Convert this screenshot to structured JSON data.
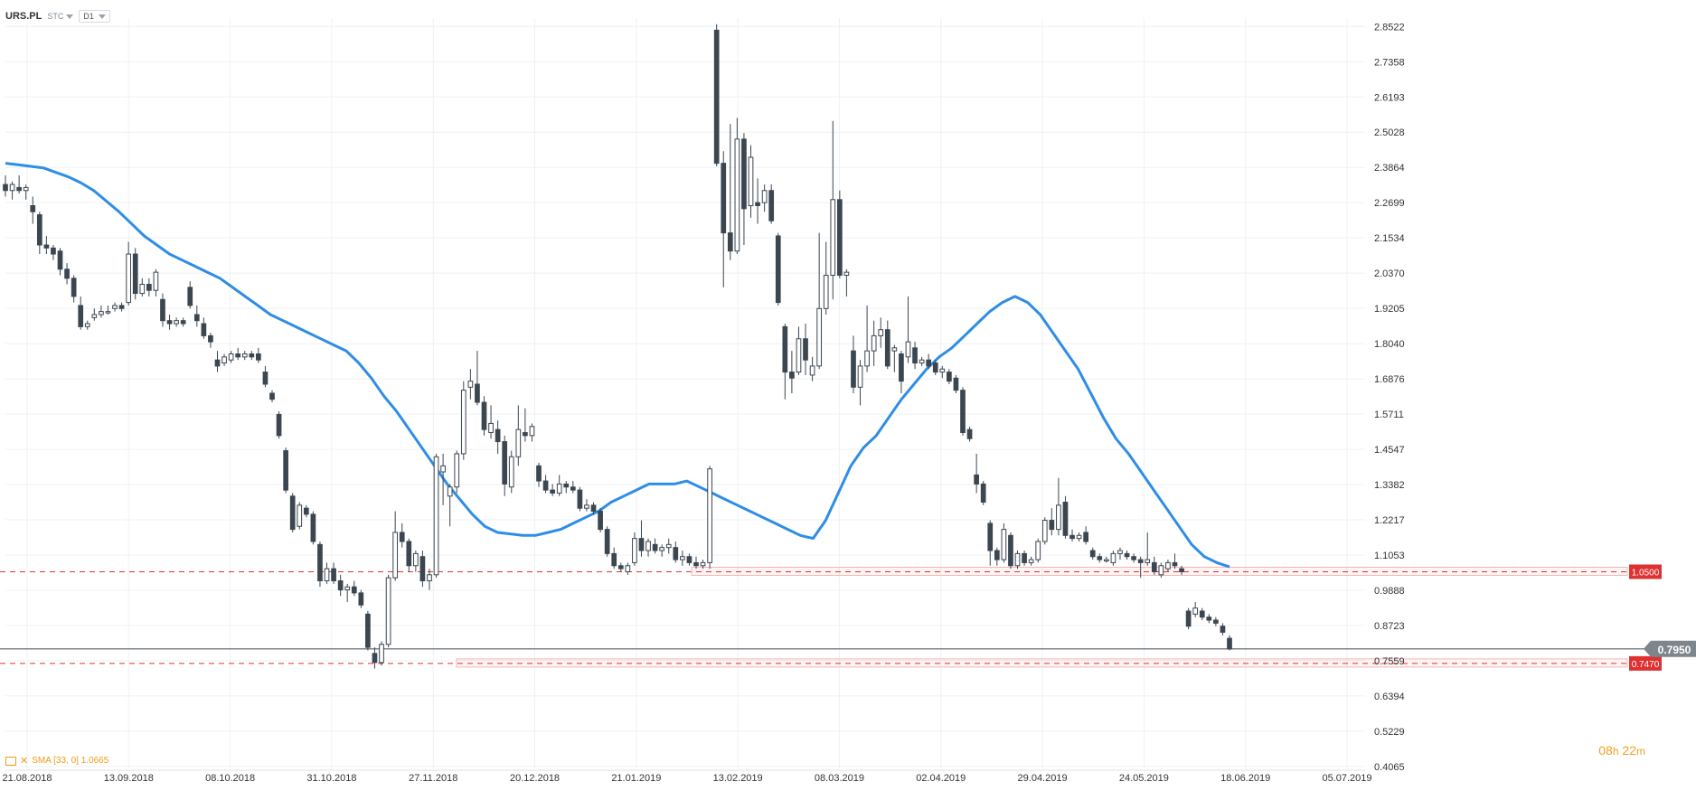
{
  "header": {
    "symbol": "URS.PL",
    "category": "STC",
    "timeframe": "D1"
  },
  "indicator": {
    "label": "SMA [33, 0] 1.0665"
  },
  "countdown": {
    "hours": "08",
    "h": "h",
    "minutes": "22",
    "m": "m"
  },
  "colors": {
    "bull_body": "#ffffff",
    "bear_body": "#3b4650",
    "candle_outline": "#3b4650",
    "sma": "#2e8de6",
    "level_red": "#e03131",
    "price_tag": "#7d868c",
    "grid": "#eef1f4",
    "axis_text": "#333333"
  },
  "chart_data": {
    "type": "candlestick",
    "symbol": "URS.PL",
    "timeframe": "D1",
    "x_tick_labels": [
      "21.08.2018",
      "13.09.2018",
      "08.10.2018",
      "31.10.2018",
      "27.11.2018",
      "20.12.2018",
      "21.01.2019",
      "13.02.2019",
      "08.03.2019",
      "02.04.2019",
      "29.04.2019",
      "24.05.2019",
      "18.06.2019",
      "05.07.2019"
    ],
    "y_tick_labels": [
      2.8522,
      2.7358,
      2.6193,
      2.5028,
      2.3864,
      2.2699,
      2.1534,
      2.037,
      1.9205,
      1.804,
      1.6876,
      1.5711,
      1.4547,
      1.3382,
      1.2217,
      1.1053,
      0.9888,
      0.8723,
      0.7559,
      0.6394,
      0.5229,
      0.4065
    ],
    "y_range": [
      0.4,
      2.88
    ],
    "last_price": "0.7950",
    "levels": [
      {
        "value": 1.05,
        "label": "1.0500",
        "x_from_date": "01.01.2019"
      },
      {
        "value": 0.747,
        "label": "0.7470",
        "x_from_date": "13.11.2018"
      }
    ],
    "sma": {
      "name": "SMA [33, 0]",
      "period": 33,
      "last_value": 1.0665,
      "values": [
        2.4,
        2.395,
        2.39,
        2.385,
        2.37,
        2.355,
        2.335,
        2.31,
        2.275,
        2.24,
        2.2,
        2.16,
        2.13,
        2.1,
        2.08,
        2.06,
        2.04,
        2.02,
        1.99,
        1.96,
        1.93,
        1.9,
        1.88,
        1.86,
        1.84,
        1.82,
        1.8,
        1.78,
        1.74,
        1.69,
        1.63,
        1.58,
        1.52,
        1.46,
        1.4,
        1.34,
        1.29,
        1.24,
        1.2,
        1.18,
        1.175,
        1.17,
        1.17,
        1.18,
        1.19,
        1.21,
        1.23,
        1.25,
        1.28,
        1.3,
        1.32,
        1.34,
        1.34,
        1.34,
        1.35,
        1.33,
        1.31,
        1.29,
        1.27,
        1.25,
        1.23,
        1.21,
        1.19,
        1.17,
        1.16,
        1.22,
        1.31,
        1.4,
        1.46,
        1.5,
        1.56,
        1.62,
        1.67,
        1.72,
        1.76,
        1.79,
        1.83,
        1.87,
        1.91,
        1.94,
        1.96,
        1.94,
        1.9,
        1.84,
        1.78,
        1.72,
        1.64,
        1.56,
        1.49,
        1.44,
        1.38,
        1.32,
        1.26,
        1.2,
        1.14,
        1.1,
        1.08,
        1.066
      ]
    },
    "candles": [
      {
        "o": 2.33,
        "h": 2.36,
        "l": 2.29,
        "c": 2.31
      },
      {
        "o": 2.31,
        "h": 2.34,
        "l": 2.28,
        "c": 2.33
      },
      {
        "o": 2.32,
        "h": 2.36,
        "l": 2.3,
        "c": 2.31
      },
      {
        "o": 2.31,
        "h": 2.33,
        "l": 2.28,
        "c": 2.32
      },
      {
        "o": 2.26,
        "h": 2.29,
        "l": 2.2,
        "c": 2.24
      },
      {
        "o": 2.23,
        "h": 2.24,
        "l": 2.1,
        "c": 2.13
      },
      {
        "o": 2.13,
        "h": 2.16,
        "l": 2.1,
        "c": 2.12
      },
      {
        "o": 2.12,
        "h": 2.13,
        "l": 2.08,
        "c": 2.1
      },
      {
        "o": 2.11,
        "h": 2.12,
        "l": 2.03,
        "c": 2.05
      },
      {
        "o": 2.05,
        "h": 2.07,
        "l": 2.0,
        "c": 2.02
      },
      {
        "o": 2.02,
        "h": 2.03,
        "l": 1.94,
        "c": 1.96
      },
      {
        "o": 1.93,
        "h": 1.96,
        "l": 1.85,
        "c": 1.86
      },
      {
        "o": 1.86,
        "h": 1.88,
        "l": 1.85,
        "c": 1.87
      },
      {
        "o": 1.89,
        "h": 1.92,
        "l": 1.88,
        "c": 1.9
      },
      {
        "o": 1.9,
        "h": 1.93,
        "l": 1.89,
        "c": 1.91
      },
      {
        "o": 1.91,
        "h": 1.93,
        "l": 1.9,
        "c": 1.91
      },
      {
        "o": 1.92,
        "h": 1.94,
        "l": 1.91,
        "c": 1.93
      },
      {
        "o": 1.93,
        "h": 1.94,
        "l": 1.91,
        "c": 1.92
      },
      {
        "o": 1.94,
        "h": 2.14,
        "l": 1.93,
        "c": 2.1
      },
      {
        "o": 2.1,
        "h": 2.12,
        "l": 1.95,
        "c": 1.97
      },
      {
        "o": 1.97,
        "h": 2.02,
        "l": 1.96,
        "c": 2.0
      },
      {
        "o": 2.0,
        "h": 2.02,
        "l": 1.96,
        "c": 1.98
      },
      {
        "o": 1.98,
        "h": 2.05,
        "l": 1.96,
        "c": 2.04
      },
      {
        "o": 1.95,
        "h": 1.97,
        "l": 1.86,
        "c": 1.88
      },
      {
        "o": 1.88,
        "h": 1.9,
        "l": 1.85,
        "c": 1.87
      },
      {
        "o": 1.87,
        "h": 1.89,
        "l": 1.86,
        "c": 1.88
      },
      {
        "o": 1.88,
        "h": 1.89,
        "l": 1.86,
        "c": 1.87
      },
      {
        "o": 1.99,
        "h": 2.01,
        "l": 1.92,
        "c": 1.93
      },
      {
        "o": 1.9,
        "h": 1.93,
        "l": 1.86,
        "c": 1.88
      },
      {
        "o": 1.87,
        "h": 1.89,
        "l": 1.82,
        "c": 1.83
      },
      {
        "o": 1.83,
        "h": 1.84,
        "l": 1.79,
        "c": 1.81
      },
      {
        "o": 1.75,
        "h": 1.78,
        "l": 1.71,
        "c": 1.73
      },
      {
        "o": 1.74,
        "h": 1.77,
        "l": 1.73,
        "c": 1.76
      },
      {
        "o": 1.75,
        "h": 1.78,
        "l": 1.74,
        "c": 1.77
      },
      {
        "o": 1.77,
        "h": 1.79,
        "l": 1.75,
        "c": 1.76
      },
      {
        "o": 1.76,
        "h": 1.78,
        "l": 1.75,
        "c": 1.77
      },
      {
        "o": 1.77,
        "h": 1.78,
        "l": 1.75,
        "c": 1.76
      },
      {
        "o": 1.77,
        "h": 1.79,
        "l": 1.74,
        "c": 1.75
      },
      {
        "o": 1.71,
        "h": 1.73,
        "l": 1.66,
        "c": 1.67
      },
      {
        "o": 1.64,
        "h": 1.65,
        "l": 1.61,
        "c": 1.62
      },
      {
        "o": 1.57,
        "h": 1.58,
        "l": 1.49,
        "c": 1.5
      },
      {
        "o": 1.45,
        "h": 1.46,
        "l": 1.31,
        "c": 1.32
      },
      {
        "o": 1.3,
        "h": 1.31,
        "l": 1.18,
        "c": 1.19
      },
      {
        "o": 1.2,
        "h": 1.28,
        "l": 1.19,
        "c": 1.27
      },
      {
        "o": 1.26,
        "h": 1.27,
        "l": 1.23,
        "c": 1.24
      },
      {
        "o": 1.24,
        "h": 1.25,
        "l": 1.14,
        "c": 1.15
      },
      {
        "o": 1.14,
        "h": 1.15,
        "l": 1.0,
        "c": 1.02
      },
      {
        "o": 1.02,
        "h": 1.08,
        "l": 1.01,
        "c": 1.06
      },
      {
        "o": 1.06,
        "h": 1.08,
        "l": 1.01,
        "c": 1.02
      },
      {
        "o": 1.02,
        "h": 1.04,
        "l": 0.97,
        "c": 0.99
      },
      {
        "o": 0.99,
        "h": 1.01,
        "l": 0.95,
        "c": 1.0
      },
      {
        "o": 1.0,
        "h": 1.02,
        "l": 0.97,
        "c": 0.98
      },
      {
        "o": 0.98,
        "h": 0.99,
        "l": 0.93,
        "c": 0.94
      },
      {
        "o": 0.91,
        "h": 0.92,
        "l": 0.79,
        "c": 0.8
      },
      {
        "o": 0.78,
        "h": 0.8,
        "l": 0.73,
        "c": 0.75
      },
      {
        "o": 0.75,
        "h": 0.82,
        "l": 0.74,
        "c": 0.81
      },
      {
        "o": 0.81,
        "h": 1.04,
        "l": 0.8,
        "c": 1.03
      },
      {
        "o": 1.03,
        "h": 1.25,
        "l": 1.02,
        "c": 1.18
      },
      {
        "o": 1.18,
        "h": 1.21,
        "l": 1.13,
        "c": 1.15
      },
      {
        "o": 1.15,
        "h": 1.16,
        "l": 1.05,
        "c": 1.07
      },
      {
        "o": 1.07,
        "h": 1.12,
        "l": 1.05,
        "c": 1.11
      },
      {
        "o": 1.1,
        "h": 1.12,
        "l": 1.0,
        "c": 1.02
      },
      {
        "o": 1.02,
        "h": 1.06,
        "l": 0.99,
        "c": 1.04
      },
      {
        "o": 1.04,
        "h": 1.44,
        "l": 1.03,
        "c": 1.43
      },
      {
        "o": 1.38,
        "h": 1.44,
        "l": 1.27,
        "c": 1.4
      },
      {
        "o": 1.3,
        "h": 1.34,
        "l": 1.2,
        "c": 1.33
      },
      {
        "o": 1.33,
        "h": 1.45,
        "l": 1.31,
        "c": 1.44
      },
      {
        "o": 1.44,
        "h": 1.68,
        "l": 1.42,
        "c": 1.65
      },
      {
        "o": 1.66,
        "h": 1.72,
        "l": 1.62,
        "c": 1.68
      },
      {
        "o": 1.67,
        "h": 1.78,
        "l": 1.6,
        "c": 1.61
      },
      {
        "o": 1.61,
        "h": 1.63,
        "l": 1.5,
        "c": 1.52
      },
      {
        "o": 1.51,
        "h": 1.6,
        "l": 1.49,
        "c": 1.54
      },
      {
        "o": 1.52,
        "h": 1.55,
        "l": 1.44,
        "c": 1.48
      },
      {
        "o": 1.48,
        "h": 1.5,
        "l": 1.3,
        "c": 1.34
      },
      {
        "o": 1.33,
        "h": 1.45,
        "l": 1.31,
        "c": 1.43
      },
      {
        "o": 1.43,
        "h": 1.6,
        "l": 1.4,
        "c": 1.52
      },
      {
        "o": 1.51,
        "h": 1.59,
        "l": 1.48,
        "c": 1.5
      },
      {
        "o": 1.5,
        "h": 1.54,
        "l": 1.48,
        "c": 1.53
      },
      {
        "o": 1.4,
        "h": 1.41,
        "l": 1.33,
        "c": 1.35
      },
      {
        "o": 1.35,
        "h": 1.37,
        "l": 1.31,
        "c": 1.32
      },
      {
        "o": 1.32,
        "h": 1.34,
        "l": 1.3,
        "c": 1.31
      },
      {
        "o": 1.31,
        "h": 1.37,
        "l": 1.3,
        "c": 1.34
      },
      {
        "o": 1.34,
        "h": 1.35,
        "l": 1.31,
        "c": 1.33
      },
      {
        "o": 1.33,
        "h": 1.35,
        "l": 1.31,
        "c": 1.32
      },
      {
        "o": 1.32,
        "h": 1.33,
        "l": 1.25,
        "c": 1.26
      },
      {
        "o": 1.26,
        "h": 1.29,
        "l": 1.25,
        "c": 1.27
      },
      {
        "o": 1.27,
        "h": 1.28,
        "l": 1.24,
        "c": 1.25
      },
      {
        "o": 1.25,
        "h": 1.26,
        "l": 1.18,
        "c": 1.19
      },
      {
        "o": 1.19,
        "h": 1.2,
        "l": 1.1,
        "c": 1.11
      },
      {
        "o": 1.11,
        "h": 1.13,
        "l": 1.06,
        "c": 1.07
      },
      {
        "o": 1.07,
        "h": 1.08,
        "l": 1.05,
        "c": 1.06
      },
      {
        "o": 1.05,
        "h": 1.08,
        "l": 1.04,
        "c": 1.07
      },
      {
        "o": 1.08,
        "h": 1.18,
        "l": 1.07,
        "c": 1.16
      },
      {
        "o": 1.16,
        "h": 1.22,
        "l": 1.1,
        "c": 1.12
      },
      {
        "o": 1.12,
        "h": 1.16,
        "l": 1.1,
        "c": 1.15
      },
      {
        "o": 1.14,
        "h": 1.16,
        "l": 1.11,
        "c": 1.12
      },
      {
        "o": 1.12,
        "h": 1.14,
        "l": 1.1,
        "c": 1.13
      },
      {
        "o": 1.13,
        "h": 1.16,
        "l": 1.11,
        "c": 1.14
      },
      {
        "o": 1.13,
        "h": 1.15,
        "l": 1.08,
        "c": 1.09
      },
      {
        "o": 1.09,
        "h": 1.12,
        "l": 1.07,
        "c": 1.1
      },
      {
        "o": 1.1,
        "h": 1.11,
        "l": 1.07,
        "c": 1.08
      },
      {
        "o": 1.08,
        "h": 1.1,
        "l": 1.06,
        "c": 1.07
      },
      {
        "o": 1.07,
        "h": 1.09,
        "l": 1.06,
        "c": 1.08
      },
      {
        "o": 1.08,
        "h": 1.4,
        "l": 1.06,
        "c": 1.39
      },
      {
        "o": 2.84,
        "h": 2.86,
        "l": 2.39,
        "c": 2.4
      },
      {
        "o": 2.4,
        "h": 2.44,
        "l": 1.99,
        "c": 2.17
      },
      {
        "o": 2.17,
        "h": 2.53,
        "l": 2.08,
        "c": 2.11
      },
      {
        "o": 2.11,
        "h": 2.55,
        "l": 2.1,
        "c": 2.48
      },
      {
        "o": 2.48,
        "h": 2.5,
        "l": 2.13,
        "c": 2.25
      },
      {
        "o": 2.26,
        "h": 2.46,
        "l": 2.22,
        "c": 2.42
      },
      {
        "o": 2.27,
        "h": 2.35,
        "l": 2.2,
        "c": 2.26
      },
      {
        "o": 2.27,
        "h": 2.33,
        "l": 2.24,
        "c": 2.31
      },
      {
        "o": 2.31,
        "h": 2.33,
        "l": 2.2,
        "c": 2.21
      },
      {
        "o": 2.16,
        "h": 2.17,
        "l": 1.93,
        "c": 1.94
      },
      {
        "o": 1.86,
        "h": 1.87,
        "l": 1.62,
        "c": 1.71
      },
      {
        "o": 1.71,
        "h": 1.78,
        "l": 1.64,
        "c": 1.69
      },
      {
        "o": 1.71,
        "h": 1.86,
        "l": 1.7,
        "c": 1.82
      },
      {
        "o": 1.82,
        "h": 1.87,
        "l": 1.7,
        "c": 1.75
      },
      {
        "o": 1.7,
        "h": 1.76,
        "l": 1.68,
        "c": 1.73
      },
      {
        "o": 1.73,
        "h": 2.17,
        "l": 1.72,
        "c": 1.92
      },
      {
        "o": 1.92,
        "h": 2.14,
        "l": 1.9,
        "c": 2.03
      },
      {
        "o": 2.03,
        "h": 2.54,
        "l": 1.95,
        "c": 2.28
      },
      {
        "o": 2.28,
        "h": 2.31,
        "l": 2.02,
        "c": 2.03
      },
      {
        "o": 2.03,
        "h": 2.05,
        "l": 1.96,
        "c": 2.04
      },
      {
        "o": 1.78,
        "h": 1.83,
        "l": 1.64,
        "c": 1.66
      },
      {
        "o": 1.66,
        "h": 1.75,
        "l": 1.6,
        "c": 1.73
      },
      {
        "o": 1.73,
        "h": 1.93,
        "l": 1.71,
        "c": 1.78
      },
      {
        "o": 1.78,
        "h": 1.88,
        "l": 1.73,
        "c": 1.83
      },
      {
        "o": 1.83,
        "h": 1.89,
        "l": 1.79,
        "c": 1.85
      },
      {
        "o": 1.85,
        "h": 1.88,
        "l": 1.72,
        "c": 1.73
      },
      {
        "o": 1.78,
        "h": 1.8,
        "l": 1.71,
        "c": 1.79
      },
      {
        "o": 1.77,
        "h": 1.78,
        "l": 1.64,
        "c": 1.68
      },
      {
        "o": 1.76,
        "h": 1.96,
        "l": 1.74,
        "c": 1.81
      },
      {
        "o": 1.79,
        "h": 1.81,
        "l": 1.72,
        "c": 1.74
      },
      {
        "o": 1.74,
        "h": 1.76,
        "l": 1.73,
        "c": 1.75
      },
      {
        "o": 1.75,
        "h": 1.77,
        "l": 1.72,
        "c": 1.73
      },
      {
        "o": 1.74,
        "h": 1.75,
        "l": 1.7,
        "c": 1.71
      },
      {
        "o": 1.71,
        "h": 1.73,
        "l": 1.69,
        "c": 1.72
      },
      {
        "o": 1.71,
        "h": 1.72,
        "l": 1.67,
        "c": 1.68
      },
      {
        "o": 1.69,
        "h": 1.7,
        "l": 1.64,
        "c": 1.65
      },
      {
        "o": 1.65,
        "h": 1.66,
        "l": 1.5,
        "c": 1.51
      },
      {
        "o": 1.52,
        "h": 1.53,
        "l": 1.48,
        "c": 1.49
      },
      {
        "o": 1.37,
        "h": 1.44,
        "l": 1.31,
        "c": 1.34
      },
      {
        "o": 1.34,
        "h": 1.35,
        "l": 1.27,
        "c": 1.28
      },
      {
        "o": 1.21,
        "h": 1.22,
        "l": 1.07,
        "c": 1.12
      },
      {
        "o": 1.12,
        "h": 1.13,
        "l": 1.07,
        "c": 1.09
      },
      {
        "o": 1.09,
        "h": 1.21,
        "l": 1.08,
        "c": 1.19
      },
      {
        "o": 1.17,
        "h": 1.18,
        "l": 1.06,
        "c": 1.07
      },
      {
        "o": 1.07,
        "h": 1.12,
        "l": 1.06,
        "c": 1.11
      },
      {
        "o": 1.11,
        "h": 1.12,
        "l": 1.07,
        "c": 1.08
      },
      {
        "o": 1.08,
        "h": 1.1,
        "l": 1.07,
        "c": 1.09
      },
      {
        "o": 1.09,
        "h": 1.16,
        "l": 1.08,
        "c": 1.15
      },
      {
        "o": 1.15,
        "h": 1.23,
        "l": 1.14,
        "c": 1.22
      },
      {
        "o": 1.22,
        "h": 1.26,
        "l": 1.17,
        "c": 1.19
      },
      {
        "o": 1.19,
        "h": 1.36,
        "l": 1.17,
        "c": 1.27
      },
      {
        "o": 1.28,
        "h": 1.3,
        "l": 1.16,
        "c": 1.17
      },
      {
        "o": 1.17,
        "h": 1.19,
        "l": 1.15,
        "c": 1.16
      },
      {
        "o": 1.16,
        "h": 1.18,
        "l": 1.15,
        "c": 1.17
      },
      {
        "o": 1.18,
        "h": 1.2,
        "l": 1.14,
        "c": 1.15
      },
      {
        "o": 1.12,
        "h": 1.13,
        "l": 1.09,
        "c": 1.1
      },
      {
        "o": 1.1,
        "h": 1.11,
        "l": 1.08,
        "c": 1.09
      },
      {
        "o": 1.09,
        "h": 1.1,
        "l": 1.08,
        "c": 1.09
      },
      {
        "o": 1.08,
        "h": 1.12,
        "l": 1.07,
        "c": 1.11
      },
      {
        "o": 1.11,
        "h": 1.13,
        "l": 1.09,
        "c": 1.12
      },
      {
        "o": 1.11,
        "h": 1.12,
        "l": 1.09,
        "c": 1.1
      },
      {
        "o": 1.1,
        "h": 1.11,
        "l": 1.08,
        "c": 1.09
      },
      {
        "o": 1.09,
        "h": 1.1,
        "l": 1.03,
        "c": 1.08
      },
      {
        "o": 1.08,
        "h": 1.18,
        "l": 1.07,
        "c": 1.09
      },
      {
        "o": 1.08,
        "h": 1.1,
        "l": 1.04,
        "c": 1.05
      },
      {
        "o": 1.04,
        "h": 1.08,
        "l": 1.03,
        "c": 1.07
      },
      {
        "o": 1.06,
        "h": 1.09,
        "l": 1.05,
        "c": 1.08
      },
      {
        "o": 1.08,
        "h": 1.11,
        "l": 1.06,
        "c": 1.07
      },
      {
        "o": 1.06,
        "h": 1.07,
        "l": 1.04,
        "c": 1.05
      },
      {
        "o": 0.92,
        "h": 0.93,
        "l": 0.86,
        "c": 0.87
      },
      {
        "o": 0.91,
        "h": 0.95,
        "l": 0.9,
        "c": 0.93
      },
      {
        "o": 0.92,
        "h": 0.93,
        "l": 0.89,
        "c": 0.9
      },
      {
        "o": 0.9,
        "h": 0.91,
        "l": 0.88,
        "c": 0.89
      },
      {
        "o": 0.89,
        "h": 0.9,
        "l": 0.87,
        "c": 0.88
      },
      {
        "o": 0.87,
        "h": 0.88,
        "l": 0.84,
        "c": 0.85
      },
      {
        "o": 0.83,
        "h": 0.84,
        "l": 0.79,
        "c": 0.795
      }
    ]
  }
}
